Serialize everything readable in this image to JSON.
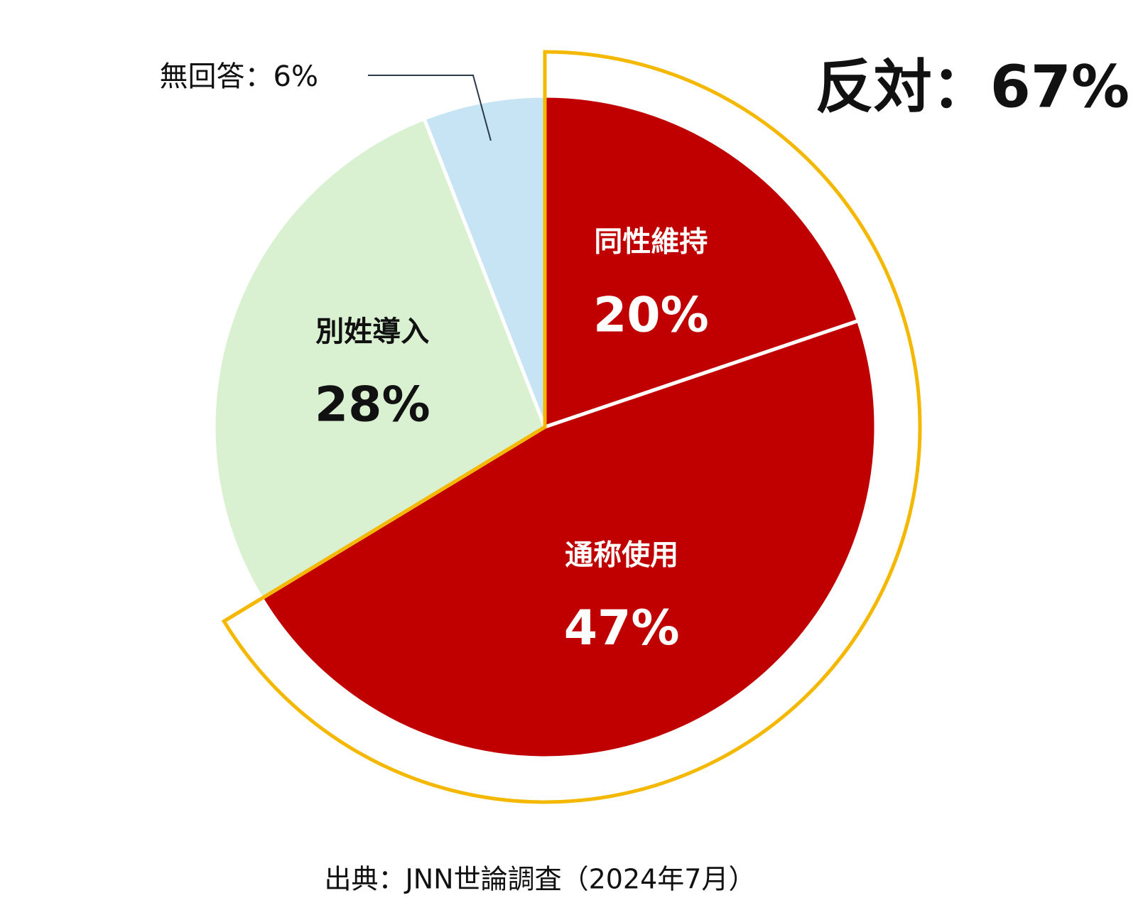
{
  "chart_data": {
    "type": "pie",
    "annotation": "反対：67%",
    "source": "出典：JNN世論調査（2024年7月）",
    "categories": [
      "同性維持",
      "通称使用",
      "別姓導入",
      "無回答"
    ],
    "values": [
      20,
      47,
      28,
      6
    ],
    "value_labels": [
      "20%",
      "47%",
      "28%",
      "6%"
    ],
    "colors": [
      "#c00000",
      "#c00000",
      "#d9f1d1",
      "#c6e4f4"
    ],
    "text_colors": [
      "#ffffff",
      "#ffffff",
      "#111111",
      "#111111"
    ],
    "separator": "：",
    "highlight_color": "#f5b800"
  }
}
